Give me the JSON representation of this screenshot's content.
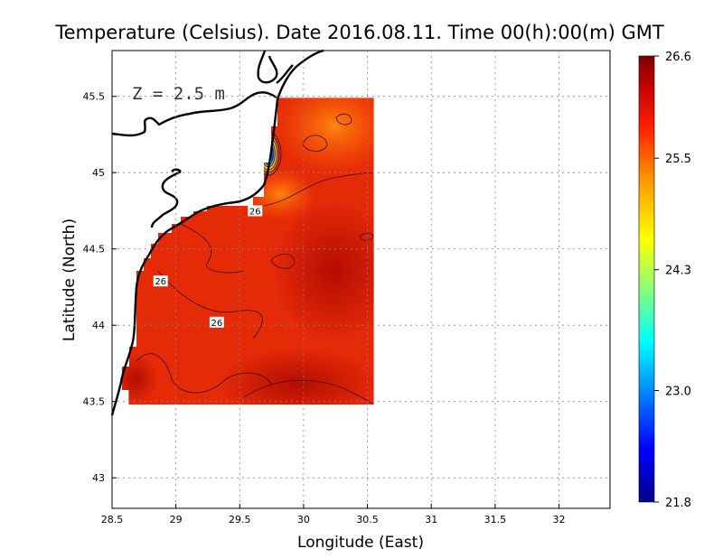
{
  "chart_data": {
    "type": "heatmap",
    "title": "Temperature (Celsius). Date 2016.08.11. Time 00(h):00(m)  GMT",
    "xlabel": "Longitude (East)",
    "ylabel": "Latitude (North)",
    "depth_label": "Z = 2.5 m",
    "xlim": [
      28.5,
      32.4
    ],
    "ylim": [
      42.8,
      45.8
    ],
    "x_ticks": [
      28.5,
      29,
      29.5,
      30,
      30.5,
      31,
      31.5,
      32
    ],
    "x_tick_labels": [
      "28.5",
      "29",
      "29.5",
      "30",
      "30.5",
      "31",
      "31.5",
      "32"
    ],
    "y_ticks": [
      43,
      43.5,
      44,
      44.5,
      45,
      45.5
    ],
    "y_tick_labels": [
      "43",
      "43.5",
      "44",
      "44.5",
      "45",
      "45.5"
    ],
    "grid": true,
    "colorbar": {
      "min": 21.8,
      "max": 26.6,
      "tick_values": [
        26.6,
        25.5,
        24.3,
        23.0,
        21.8
      ],
      "tick_labels": [
        "26.6",
        "25.5",
        "24.3",
        "23.0",
        "21.8"
      ],
      "colormap": [
        "#00008b",
        "#0000ff",
        "#00a0ff",
        "#00ffff",
        "#7fff7f",
        "#ffff00",
        "#ff9900",
        "#ff2000",
        "#c00000",
        "#7a0000"
      ]
    },
    "field_extent": {
      "lon": [
        28.63,
        30.55
      ],
      "lat": [
        43.48,
        45.49
      ]
    },
    "contour_labels": [
      {
        "lon": 29.62,
        "lat": 44.75,
        "text": "26"
      },
      {
        "lon": 28.88,
        "lat": 44.29,
        "text": "26"
      },
      {
        "lon": 29.32,
        "lat": 44.02,
        "text": "26"
      }
    ]
  }
}
